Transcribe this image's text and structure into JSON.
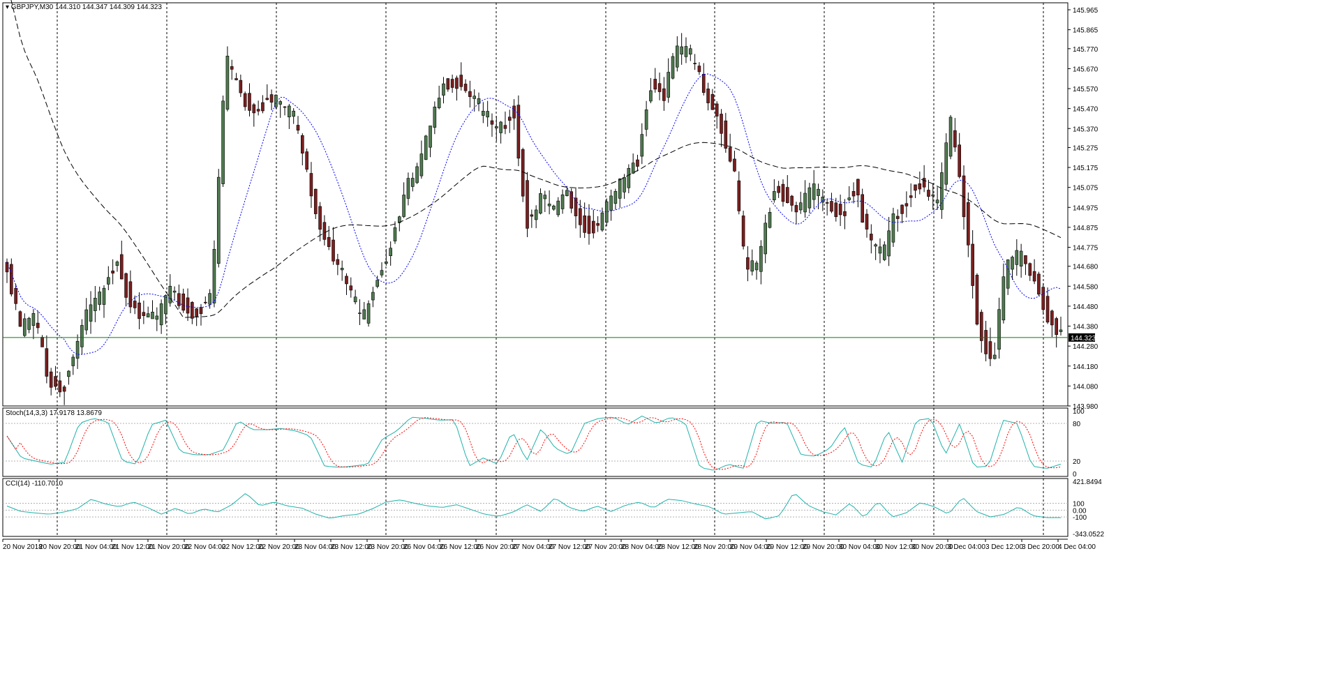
{
  "colors": {
    "background": "#ffffff",
    "frame": "#000000",
    "grid": "#000000",
    "candle_bull": "#000000",
    "candle_bear": "#000000",
    "candle_bull_fill": "#4f7a4f",
    "candle_bear_fill": "#7a1f1f",
    "ma_short": "#0000ff",
    "ma_long": "#000000",
    "price_line": "#008000",
    "stoch_main": "#20b2aa",
    "stoch_signal": "#ff0000",
    "cci": "#20b2aa"
  },
  "chart_data": [
    {
      "type": "candlestick",
      "title": "GBPJPY,M30  144.310 144.347 144.309 144.323",
      "symbol_label": "GBPJPY,M30",
      "ohlc_label": "144.310 144.347 144.309 144.323",
      "ylim": [
        143.98,
        146.0
      ],
      "yticks": [
        "145.965",
        "145.865",
        "145.770",
        "145.670",
        "145.570",
        "145.470",
        "145.370",
        "145.275",
        "145.175",
        "145.075",
        "144.975",
        "144.875",
        "144.775",
        "144.680",
        "144.580",
        "144.480",
        "144.380",
        "144.280",
        "144.180",
        "144.080",
        "143.980"
      ],
      "current_price": "144.323",
      "x_labels": [
        "20 Nov 2018",
        "20 Nov 20:00",
        "21 Nov 04:00",
        "21 Nov 12:00",
        "21 Nov 20:00",
        "22 Nov 04:00",
        "22 Nov 12:00",
        "22 Nov 20:00",
        "23 Nov 04:00",
        "23 Nov 12:00",
        "23 Nov 20:00",
        "26 Nov 04:00",
        "26 Nov 12:00",
        "26 Nov 20:00",
        "27 Nov 04:00",
        "27 Nov 12:00",
        "27 Nov 20:00",
        "28 Nov 04:00",
        "28 Nov 12:00",
        "28 Nov 20:00",
        "29 Nov 04:00",
        "29 Nov 12:00",
        "29 Nov 20:00",
        "30 Nov 04:00",
        "30 Nov 12:00",
        "30 Nov 20:00",
        "3 Dec 04:00",
        "3 Dec 12:00",
        "3 Dec 20:00",
        "4 Dec 04:00"
      ],
      "close_path": [
        144.7,
        144.35,
        144.42,
        144.12,
        144.05,
        144.28,
        144.45,
        144.55,
        144.72,
        144.5,
        144.45,
        144.42,
        144.55,
        144.48,
        144.45,
        144.55,
        145.72,
        145.55,
        145.45,
        145.52,
        145.48,
        145.42,
        145.1,
        144.85,
        144.72,
        144.55,
        144.4,
        144.6,
        144.78,
        145.05,
        145.15,
        145.4,
        145.62,
        145.6,
        145.52,
        145.42,
        145.35,
        145.48,
        144.9,
        145.02,
        144.95,
        145.05,
        144.9,
        144.88,
        145.0,
        145.1,
        145.2,
        145.6,
        145.55,
        145.78,
        145.72,
        145.55,
        145.42,
        145.2,
        144.65,
        144.7,
        145.08,
        145.02,
        144.98,
        145.05,
        144.98,
        144.95,
        145.1,
        144.8,
        144.72,
        144.95,
        145.05,
        145.1,
        145.0,
        145.4,
        144.92,
        144.35,
        144.2,
        144.68,
        144.72,
        144.62,
        144.45,
        144.33
      ]
    },
    {
      "type": "line",
      "title": "Stoch(14,3,3) 17.9178 13.8679",
      "ylim": [
        0,
        100
      ],
      "yticks": [
        "100",
        "80",
        "20",
        "0"
      ],
      "path": [
        60,
        25,
        20,
        15,
        18,
        80,
        88,
        82,
        20,
        15,
        78,
        85,
        35,
        30,
        30,
        38,
        85,
        70,
        70,
        72,
        68,
        60,
        12,
        10,
        12,
        15,
        55,
        68,
        90,
        88,
        85,
        86,
        12,
        25,
        15,
        68,
        20,
        72,
        40,
        30,
        80,
        88,
        90,
        78,
        92,
        80,
        90,
        80,
        10,
        5,
        15,
        8,
        85,
        80,
        82,
        30,
        28,
        40,
        75,
        15,
        10,
        70,
        18,
        85,
        88,
        30,
        80,
        10,
        12,
        85,
        80,
        12,
        8,
        15
      ]
    },
    {
      "type": "line",
      "title": "CCI(14) -110.7010",
      "ylim": [
        -343.0522,
        421.8494
      ],
      "yticks": [
        "421.8494",
        "100",
        "0.00",
        "-100",
        "-343.0522"
      ],
      "path": [
        60,
        -20,
        -40,
        -60,
        -30,
        20,
        160,
        90,
        50,
        120,
        40,
        -60,
        30,
        -60,
        20,
        -30,
        80,
        250,
        60,
        120,
        60,
        30,
        -60,
        -120,
        -80,
        -60,
        20,
        120,
        150,
        100,
        60,
        40,
        80,
        10,
        -60,
        -90,
        -30,
        80,
        -20,
        180,
        40,
        -20,
        60,
        -20,
        70,
        120,
        30,
        160,
        140,
        90,
        50,
        -60,
        -40,
        -20,
        -130,
        -80,
        260,
        70,
        -20,
        -70,
        100,
        -110,
        130,
        -100,
        -40,
        110,
        50,
        -60,
        190,
        -20,
        -100,
        -60,
        50,
        -80,
        -110,
        -110
      ]
    }
  ]
}
